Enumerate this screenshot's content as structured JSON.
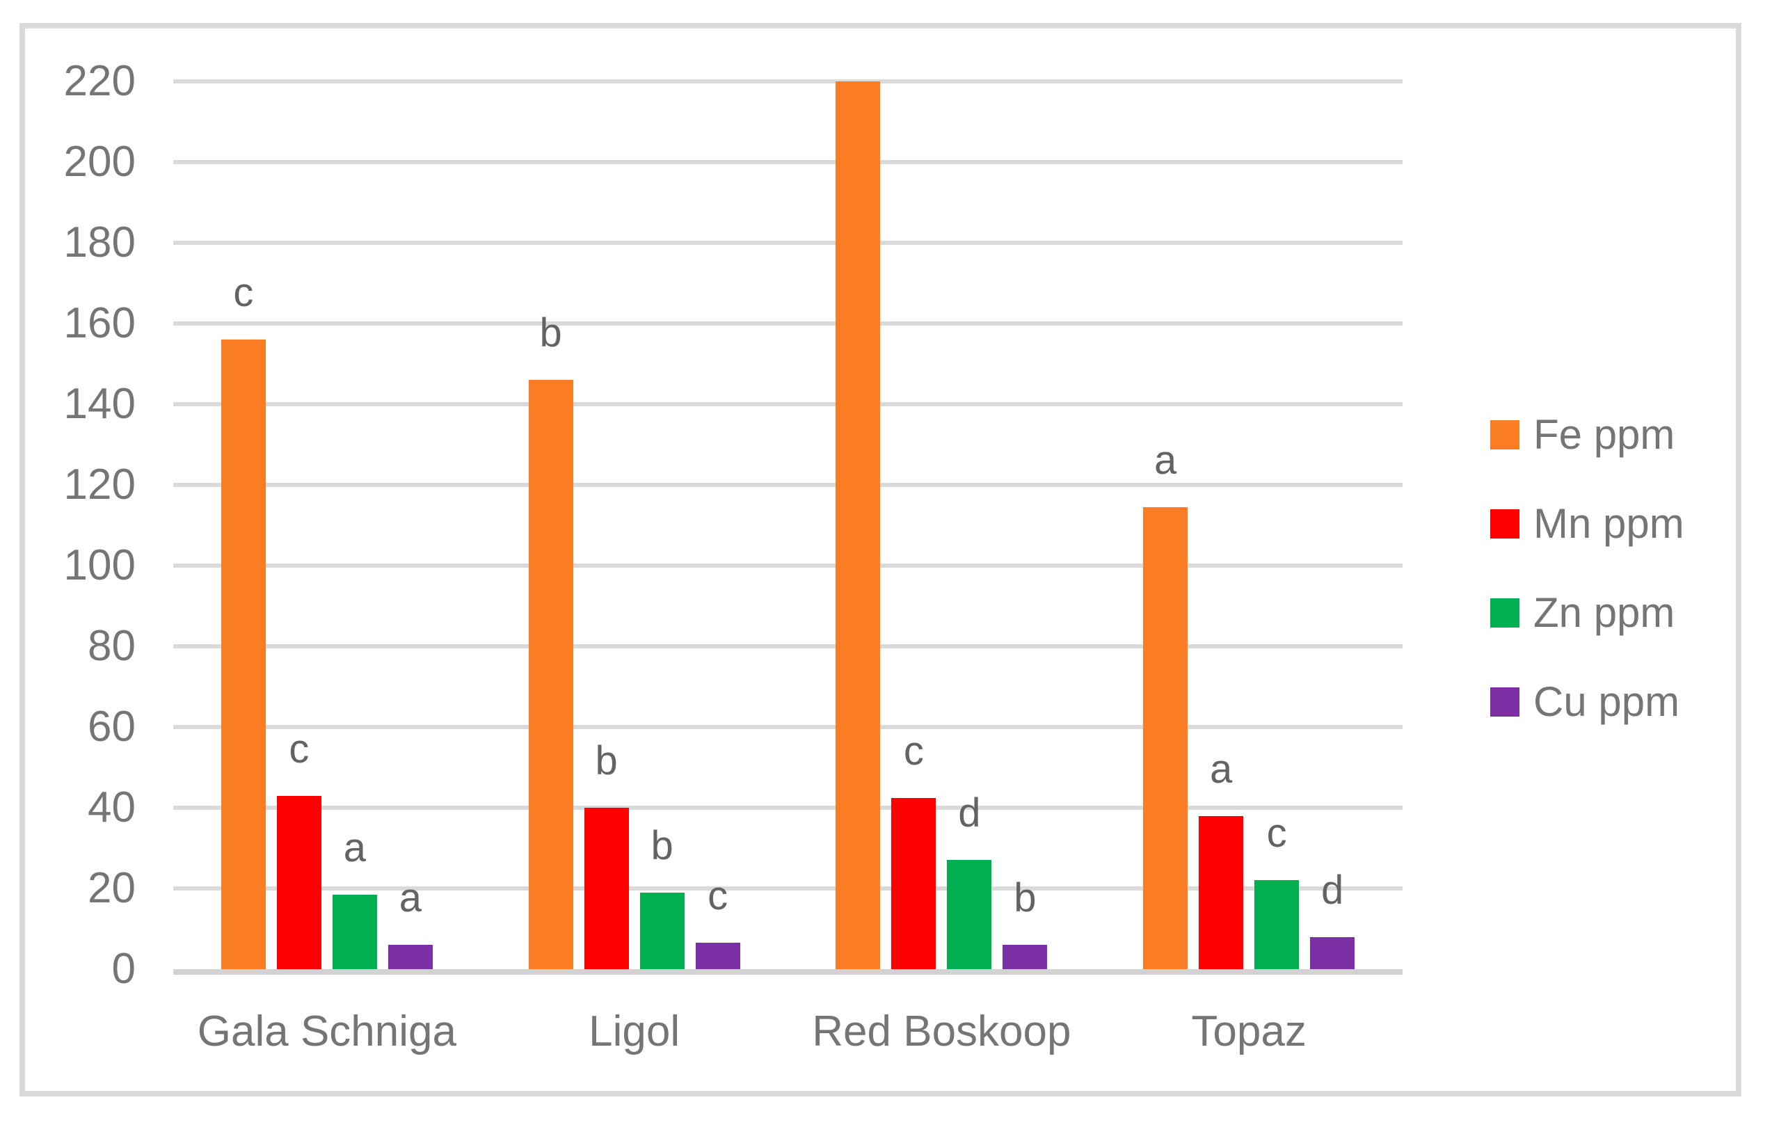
{
  "chart_data": {
    "type": "bar",
    "title": "",
    "xlabel": "",
    "ylabel": "",
    "categories": [
      "Gala Schniga",
      "Ligol",
      "Red Boskoop",
      "Topaz"
    ],
    "series": [
      {
        "name": "Fe ppm",
        "color": "#fa7d26",
        "values": [
          156,
          146,
          220,
          114.5
        ],
        "letters": [
          "c",
          "b",
          "",
          "a"
        ]
      },
      {
        "name": "Mn ppm",
        "color": "#fe0000",
        "values": [
          43,
          40,
          42.5,
          38
        ],
        "letters": [
          "c",
          "b",
          "c",
          "a"
        ]
      },
      {
        "name": "Zn ppm",
        "color": "#00b050",
        "values": [
          18.5,
          19,
          27,
          22
        ],
        "letters": [
          "a",
          "b",
          "d",
          "c"
        ]
      },
      {
        "name": "Cu ppm",
        "color": "#7b2fa5",
        "values": [
          6,
          6.5,
          6,
          8
        ],
        "letters": [
          "a",
          "c",
          "b",
          "d"
        ]
      }
    ],
    "ylim": [
      0,
      220
    ],
    "ytick_step": 20,
    "yticks": [
      220,
      200,
      180,
      160,
      140,
      120,
      100,
      80,
      60,
      40,
      20,
      0
    ],
    "grid": true,
    "legend_position": "right",
    "gridline_color": "#dadada",
    "axis_line_color": "#d2d2d2",
    "tick_label_color": "#757575",
    "annotation_color": "#636363",
    "frame_color": "#d9d9d9"
  }
}
